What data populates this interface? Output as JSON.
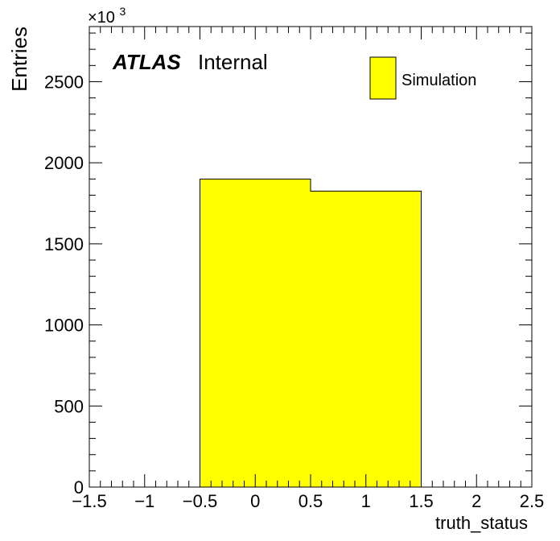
{
  "chart_data": {
    "type": "bar",
    "bins": [
      {
        "low": -0.5,
        "high": 0.5,
        "value": 1900
      },
      {
        "low": 0.5,
        "high": 1.5,
        "value": 1825
      }
    ],
    "xlabel": "truth_status",
    "ylabel": "Entries",
    "xlim": [
      -1.5,
      2.5
    ],
    "ylim": [
      0,
      2840
    ],
    "x_ticks": [
      -1.5,
      -1,
      -0.5,
      0,
      0.5,
      1,
      1.5,
      2,
      2.5
    ],
    "x_tick_labels": [
      "−1.5",
      "−1",
      "−0.5",
      "0",
      "0.5",
      "1",
      "1.5",
      "2",
      "2.5"
    ],
    "y_ticks": [
      0,
      500,
      1000,
      1500,
      2000,
      2500
    ],
    "y_tick_labels": [
      "0",
      "500",
      "1000",
      "1500",
      "2000",
      "2500"
    ],
    "y_multiplier": {
      "base": "×10",
      "exponent": "3"
    },
    "fill_color": "#ffff00",
    "line_color": "#000000",
    "grid": false,
    "legend": {
      "placement": "top-right",
      "entries": [
        {
          "name": "Simulation",
          "color": "#ffff00"
        }
      ]
    },
    "annotation": {
      "experiment": "ATLAS",
      "status": "Internal"
    }
  }
}
